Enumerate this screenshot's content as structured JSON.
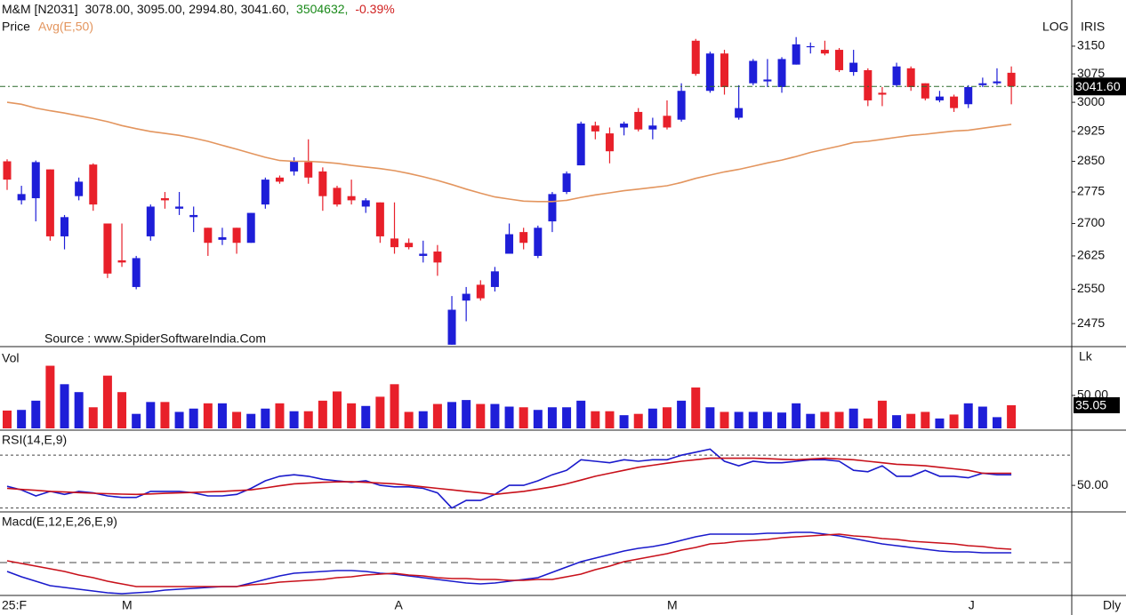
{
  "header": {
    "symbol": "M&M [N2031]",
    "ohlc": "3078.00, 3095.00, 2994.80, 3041.60,",
    "volume": "3504632,",
    "change": "-0.39%"
  },
  "chart_data": [
    {
      "type": "candlestick",
      "log_scale": true,
      "scale_label": "LOG",
      "indicator_label": "IRIS",
      "annotation": "Source : www.SpiderSoftwareIndia.Com",
      "last_value_label": "3041.60",
      "categories": [
        "25:F",
        null,
        null,
        null,
        null,
        null,
        null,
        null,
        "M",
        null,
        null,
        null,
        null,
        null,
        null,
        null,
        null,
        null,
        null,
        null,
        null,
        null,
        null,
        null,
        null,
        null,
        null,
        "A",
        null,
        null,
        null,
        null,
        null,
        null,
        null,
        null,
        null,
        null,
        null,
        null,
        null,
        null,
        null,
        null,
        null,
        null,
        "M",
        null,
        null,
        null,
        null,
        null,
        null,
        null,
        null,
        null,
        null,
        null,
        null,
        null,
        null,
        null,
        null,
        null,
        null,
        null,
        null,
        "J",
        null,
        null,
        null
      ],
      "x_end_label": "Dly",
      "ylim": [
        2426,
        3279
      ],
      "yticks": [
        2475,
        2550,
        2625,
        2700,
        2775,
        2850,
        2925,
        3000,
        3075,
        3150
      ],
      "up_color": "#1e1ed8",
      "down_color": "#e8202a",
      "series": [
        {
          "name": "Price",
          "color": "#1a1a8c",
          "open": [
            2850,
            2755,
            2760,
            2830,
            2670,
            2765,
            2842,
            2700,
            2615,
            2555,
            2670,
            2760,
            2735,
            2715,
            2690,
            2662,
            2690,
            2655,
            2745,
            2810,
            2825,
            2848,
            2825,
            2785,
            2765,
            2740,
            2750,
            2665,
            2655,
            2625,
            2635,
            2430,
            2525,
            2560,
            2555,
            2630,
            2680,
            2625,
            2705,
            2775,
            2840,
            2940,
            2920,
            2935,
            2975,
            2930,
            2965,
            2955,
            3165,
            3030,
            3130,
            2960,
            3050,
            3055,
            3040,
            3100,
            3150,
            3140,
            3140,
            3080,
            3085,
            3025,
            3045,
            3090,
            3050,
            3005,
            3015,
            2995,
            3045,
            3050,
            3078
          ],
          "high": [
            2855,
            2790,
            2852,
            2830,
            2720,
            2810,
            2845,
            2700,
            2700,
            2625,
            2745,
            2775,
            2775,
            2740,
            2690,
            2690,
            2690,
            2725,
            2810,
            2815,
            2860,
            2905,
            2835,
            2790,
            2805,
            2760,
            2750,
            2750,
            2665,
            2660,
            2650,
            2535,
            2555,
            2570,
            2600,
            2700,
            2690,
            2695,
            2775,
            2825,
            2950,
            2950,
            2935,
            2950,
            2985,
            2960,
            3005,
            3050,
            3170,
            3135,
            3140,
            3045,
            3115,
            3115,
            3120,
            3175,
            3160,
            3165,
            3145,
            3140,
            3090,
            3040,
            3105,
            3095,
            3050,
            3030,
            3020,
            3045,
            3065,
            3090,
            3095
          ],
          "low": [
            2780,
            2745,
            2705,
            2660,
            2640,
            2755,
            2730,
            2575,
            2600,
            2550,
            2660,
            2735,
            2720,
            2680,
            2625,
            2650,
            2630,
            2655,
            2735,
            2795,
            2815,
            2795,
            2730,
            2740,
            2745,
            2725,
            2655,
            2630,
            2640,
            2610,
            2580,
            2430,
            2480,
            2525,
            2545,
            2630,
            2640,
            2620,
            2680,
            2770,
            2840,
            2905,
            2845,
            2915,
            2925,
            2905,
            2930,
            2950,
            3070,
            3025,
            3020,
            2955,
            3045,
            3040,
            3025,
            3100,
            3130,
            3125,
            3080,
            3070,
            2990,
            2990,
            3040,
            3030,
            3005,
            3000,
            2975,
            2985,
            3040,
            3045,
            2994.8
          ],
          "close": [
            2805,
            2770,
            2848,
            2670,
            2715,
            2800,
            2745,
            2585,
            2610,
            2620,
            2740,
            2755,
            2740,
            2720,
            2655,
            2668,
            2655,
            2725,
            2805,
            2800,
            2850,
            2810,
            2765,
            2745,
            2755,
            2755,
            2670,
            2645,
            2645,
            2630,
            2610,
            2505,
            2540,
            2530,
            2590,
            2675,
            2655,
            2690,
            2770,
            2820,
            2945,
            2925,
            2875,
            2945,
            2930,
            2940,
            2935,
            3030,
            3075,
            3130,
            3040,
            2985,
            3110,
            3060,
            3115,
            3155,
            3150,
            3130,
            3085,
            3105,
            3005,
            3020,
            3095,
            3040,
            3010,
            3015,
            2985,
            3040,
            3050,
            3055,
            3041.6
          ]
        },
        {
          "name": "Avg(E,50)",
          "color": "#e3955e",
          "values": [
            3000,
            2995,
            2985,
            2978,
            2972,
            2965,
            2958,
            2950,
            2940,
            2932,
            2925,
            2920,
            2915,
            2908,
            2900,
            2890,
            2880,
            2870,
            2860,
            2852,
            2850,
            2850,
            2848,
            2845,
            2840,
            2836,
            2832,
            2827,
            2820,
            2812,
            2803,
            2793,
            2782,
            2772,
            2763,
            2758,
            2753,
            2752,
            2752,
            2755,
            2762,
            2768,
            2773,
            2778,
            2782,
            2786,
            2790,
            2798,
            2808,
            2816,
            2824,
            2830,
            2838,
            2846,
            2853,
            2862,
            2872,
            2880,
            2888,
            2897,
            2900,
            2905,
            2910,
            2915,
            2918,
            2922,
            2926,
            2928,
            2933,
            2938,
            2943
          ]
        }
      ]
    },
    {
      "type": "bar",
      "title": "Vol",
      "unit_label": "Lk",
      "ylim": [
        0,
        120
      ],
      "yticks": [
        {
          "value": 50,
          "label": "50.00"
        }
      ],
      "series": [
        {
          "name": "Vol",
          "values": [
            27,
            28,
            42,
            95,
            67,
            55,
            32,
            80,
            55,
            22,
            40,
            40,
            25,
            30,
            38,
            38,
            25,
            22,
            30,
            38,
            26,
            26,
            42,
            56,
            38,
            34,
            48,
            67,
            25,
            26,
            37,
            40,
            43,
            37,
            37,
            33,
            32,
            28,
            32,
            32,
            42,
            26,
            26,
            20,
            22,
            30,
            32,
            42,
            62,
            32,
            25,
            25,
            25,
            25,
            24,
            38,
            22,
            25,
            25,
            30,
            15,
            42,
            20,
            22,
            25,
            15,
            21,
            38,
            33,
            17,
            35.05
          ]
        }
      ]
    },
    {
      "type": "line",
      "title": "RSI(14,E,9)",
      "ylim": [
        33,
        86
      ],
      "yticks": [
        {
          "value": 50,
          "label": "50.00"
        }
      ],
      "levels": [
        70,
        35
      ],
      "series": [
        {
          "name": "RSI",
          "color": "#1a1acc",
          "values": [
            49.4,
            47,
            43,
            46,
            44,
            46,
            45,
            43,
            42,
            42,
            46,
            46,
            46,
            45,
            43,
            43,
            44,
            48,
            53,
            56,
            57,
            56,
            54,
            53,
            52,
            53,
            50,
            49,
            49,
            48,
            45,
            35,
            40,
            40,
            44,
            50,
            50,
            53,
            57,
            60,
            67,
            66,
            65,
            67,
            66,
            67,
            67,
            70,
            72,
            74,
            66,
            63,
            66,
            65,
            65,
            66,
            67,
            67,
            66,
            60,
            59,
            63,
            56,
            56,
            60,
            56,
            56,
            55,
            58,
            57,
            57
          ]
        },
        {
          "name": "Signal",
          "color": "#c8101a",
          "values": [
            48,
            47.3,
            46.7,
            46,
            45.6,
            45.2,
            44.8,
            44.5,
            44.2,
            44,
            44.3,
            44.7,
            45,
            45.3,
            45.7,
            46,
            46.5,
            47,
            48.3,
            49.7,
            51,
            51.5,
            52,
            52.3,
            52.5,
            52,
            51.5,
            51,
            50,
            49,
            48,
            47,
            46,
            45,
            44,
            45,
            46,
            47.5,
            49,
            51,
            53.5,
            56,
            58,
            60,
            62,
            63.3,
            64.7,
            66,
            67,
            68,
            68,
            68,
            68,
            67.7,
            67.3,
            67,
            67.5,
            68,
            67.5,
            67,
            66,
            65,
            64,
            63.5,
            63,
            62,
            61,
            60,
            58,
            58,
            58
          ]
        }
      ]
    },
    {
      "type": "line",
      "title": "Macd(E,12,E,26,E,9)",
      "ylim": [
        -37,
        56
      ],
      "levels": [
        0
      ],
      "series": [
        {
          "name": "MACD",
          "color": "#1a1acc",
          "values": [
            -10,
            -16,
            -21,
            -26,
            -28,
            -30,
            -32,
            -34,
            -35,
            -34,
            -33,
            -31,
            -30,
            -29,
            -28,
            -27,
            -27,
            -23,
            -19,
            -15,
            -12,
            -11,
            -10,
            -9,
            -9,
            -10,
            -12,
            -13,
            -15,
            -17,
            -19,
            -21,
            -23,
            -24,
            -23,
            -21,
            -19,
            -17,
            -11,
            -5,
            1,
            5,
            9,
            13,
            16,
            18,
            21,
            25,
            29,
            32,
            32,
            32,
            32,
            33,
            33,
            34,
            34,
            32,
            30,
            27,
            24,
            21,
            19,
            17,
            15,
            13,
            12,
            12,
            11,
            11,
            11
          ]
        },
        {
          "name": "Signal",
          "color": "#c8101a",
          "values": [
            2,
            -1,
            -4,
            -7,
            -10,
            -14,
            -17,
            -21,
            -24,
            -27,
            -27,
            -27,
            -27,
            -27,
            -27,
            -27,
            -27,
            -25,
            -24,
            -22,
            -21,
            -20,
            -19,
            -17,
            -16,
            -14,
            -13,
            -12,
            -14,
            -15,
            -17,
            -18,
            -18,
            -19,
            -19,
            -20,
            -20,
            -19,
            -19,
            -16,
            -13,
            -8,
            -4,
            1,
            4,
            7,
            10,
            14,
            17,
            21,
            22,
            24,
            25,
            26,
            28,
            29,
            30,
            31,
            32,
            30,
            29,
            27,
            26,
            24,
            23,
            22,
            21,
            19,
            18,
            16,
            15
          ]
        }
      ]
    }
  ]
}
